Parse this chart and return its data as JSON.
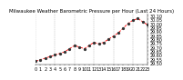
{
  "title": "Milwaukee Weather Barometric Pressure per Hour (Last 24 Hours)",
  "hours": [
    0,
    1,
    2,
    3,
    4,
    5,
    6,
    7,
    8,
    9,
    10,
    11,
    12,
    13,
    14,
    15,
    16,
    17,
    18,
    19,
    20,
    21,
    22,
    23
  ],
  "pressure": [
    29.52,
    29.54,
    29.56,
    29.58,
    29.6,
    29.62,
    29.64,
    29.68,
    29.72,
    29.7,
    29.68,
    29.72,
    29.76,
    29.74,
    29.76,
    29.8,
    29.84,
    29.88,
    29.94,
    30.0,
    30.04,
    30.06,
    30.02,
    29.98
  ],
  "line_color": "#ff0000",
  "dot_color": "#333333",
  "background_color": "#ffffff",
  "grid_color": "#aaaaaa",
  "ylim": [
    29.48,
    30.12
  ],
  "yticks": [
    29.5,
    29.55,
    29.6,
    29.65,
    29.7,
    29.75,
    29.8,
    29.85,
    29.9,
    29.95,
    30.0,
    30.05,
    30.1
  ],
  "xlim": [
    0,
    23
  ],
  "grid_positions": [
    0,
    4,
    8,
    12,
    16,
    20
  ],
  "x_tick_positions": [
    0,
    1,
    2,
    3,
    4,
    5,
    6,
    7,
    8,
    9,
    10,
    11,
    12,
    13,
    14,
    15,
    16,
    17,
    18,
    19,
    20,
    21,
    22,
    23
  ],
  "x_tick_labels": [
    "0",
    "1",
    "2",
    "3",
    "4",
    "5",
    "6",
    "7",
    "8",
    "9",
    "10",
    "11",
    "12",
    "13",
    "14",
    "15",
    "16",
    "17",
    "18",
    "19",
    "20",
    "21",
    "22",
    "23"
  ],
  "title_fontsize": 4,
  "tick_fontsize": 3.5
}
